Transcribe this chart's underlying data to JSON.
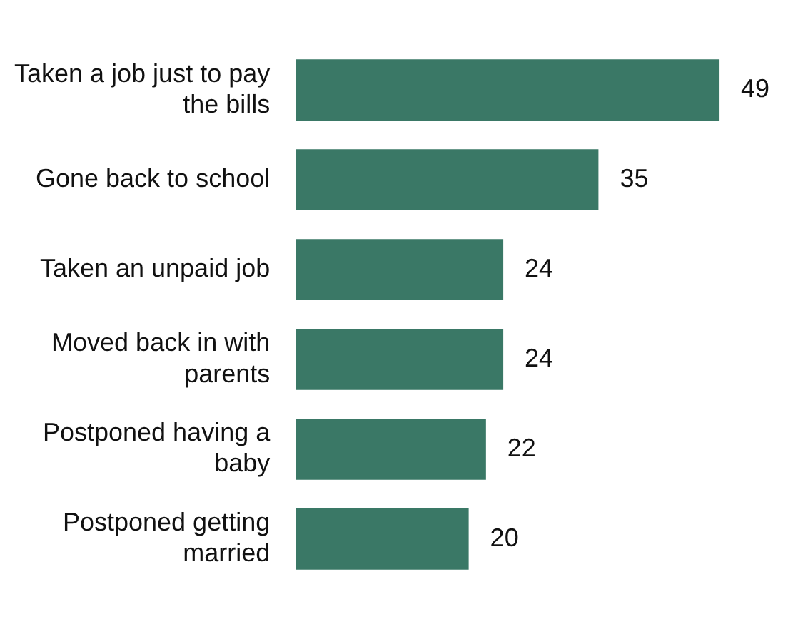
{
  "chart_data": {
    "type": "bar",
    "orientation": "horizontal",
    "categories": [
      "Taken a job just to pay the bills",
      "Gone back to school",
      "Taken an unpaid job",
      "Moved back in with parents",
      "Postponed having a baby",
      "Postponed getting married"
    ],
    "values": [
      49,
      35,
      24,
      24,
      22,
      20
    ],
    "color": "#3a7866",
    "data_labels": true
  }
}
